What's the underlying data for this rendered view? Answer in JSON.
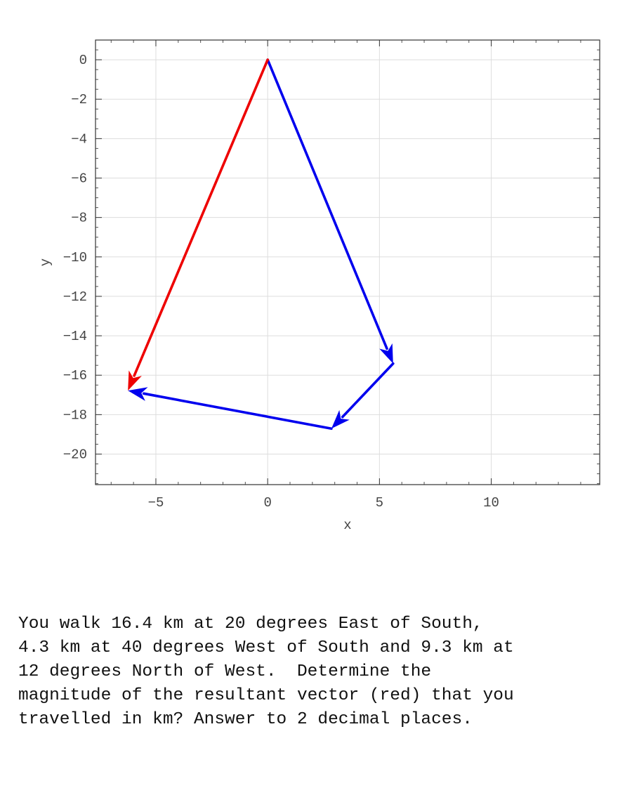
{
  "chart_data": {
    "type": "vector-diagram",
    "title": "",
    "xlabel": "x",
    "ylabel": "y",
    "xlim": [
      -7.7,
      14.85
    ],
    "ylim": [
      -21.55,
      1.0
    ],
    "grid": true,
    "xticks": [
      -5,
      0,
      5,
      10
    ],
    "yticks": [
      0,
      -2,
      -4,
      -6,
      -8,
      -10,
      -12,
      -14,
      -16,
      -18,
      -20
    ],
    "vectors": [
      {
        "role": "displacement-1",
        "color": "#0000ee",
        "from": [
          0,
          0
        ],
        "to": [
          5.61,
          -15.41
        ]
      },
      {
        "role": "displacement-2",
        "color": "#0000ee",
        "from": [
          5.61,
          -15.41
        ],
        "to": [
          2.85,
          -18.71
        ]
      },
      {
        "role": "displacement-3",
        "color": "#0000ee",
        "from": [
          2.85,
          -18.71
        ],
        "to": [
          -6.25,
          -16.78
        ]
      },
      {
        "role": "resultant",
        "color": "#ee0000",
        "from": [
          0,
          0
        ],
        "to": [
          -6.25,
          -16.78
        ]
      }
    ]
  },
  "question": {
    "text": "You walk 16.4 km at 20 degrees East of South,\n4.3 km at 40 degrees West of South and 9.3 km at\n12 degrees North of West.  Determine the\nmagnitude of the resultant vector (red) that you\ntravelled in km? Answer to 2 decimal places."
  }
}
